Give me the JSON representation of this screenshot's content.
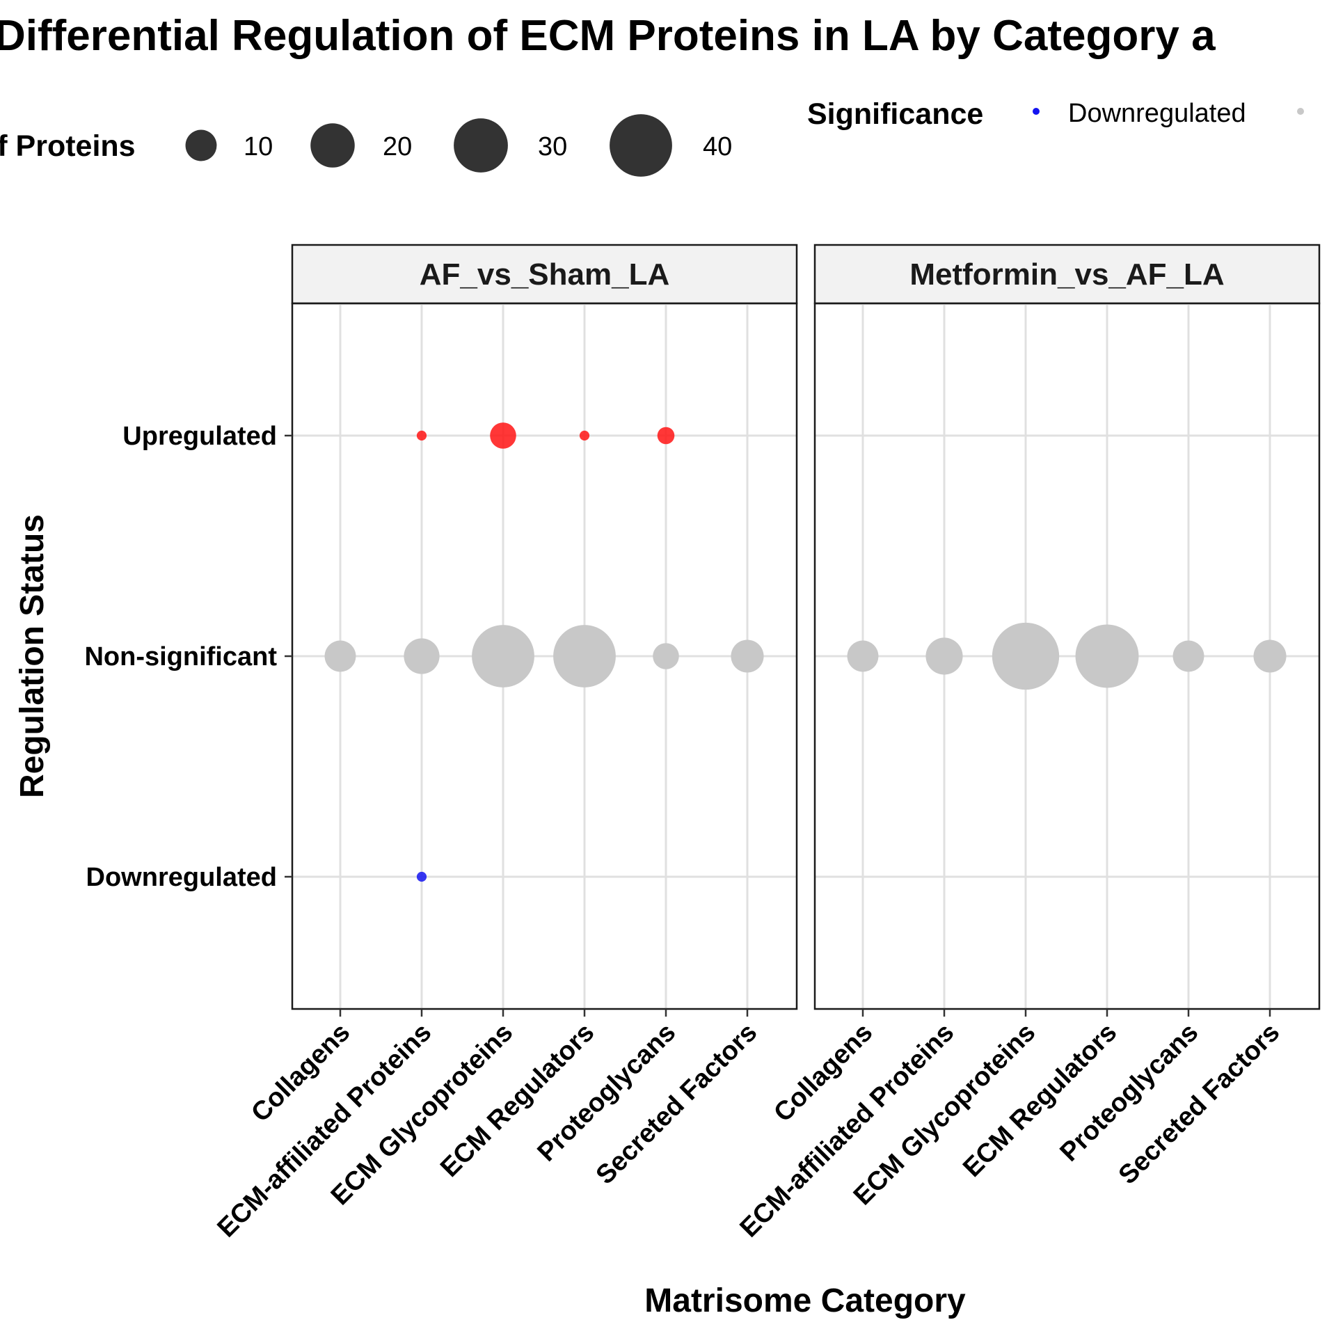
{
  "chart_data": {
    "type": "scatter",
    "title": "Differential Regulation of ECM Proteins in LA by Category a",
    "xlabel": "Matrisome Category",
    "ylabel": "Regulation Status",
    "categories": [
      "Collagens",
      "ECM-affiliated Proteins",
      "ECM Glycoproteins",
      "ECM Regulators",
      "Proteoglycans",
      "Secreted Factors"
    ],
    "y_levels": [
      "Downregulated",
      "Non-significant",
      "Upregulated"
    ],
    "facets": [
      "AF_vs_Sham_LA",
      "Metformin_vs_AF_LA"
    ],
    "size_legend": {
      "title": "of Proteins",
      "breaks": [
        10,
        20,
        30,
        40
      ],
      "labels": [
        "10",
        "20",
        "30",
        "40"
      ]
    },
    "color_legend": {
      "title": "Significance",
      "entries": [
        {
          "label": "Downregulated",
          "color": "#1414f0"
        },
        {
          "label": "",
          "color": "#c8c8c8"
        }
      ]
    },
    "colors": {
      "Upregulated": "#ff1414",
      "Non-significant": "#c8c8c8",
      "Downregulated": "#1414f0"
    },
    "points": [
      {
        "facet": "AF_vs_Sham_LA",
        "category": "Collagens",
        "status": "Non-significant",
        "count": 10
      },
      {
        "facet": "AF_vs_Sham_LA",
        "category": "ECM-affiliated Proteins",
        "status": "Upregulated",
        "count": 1
      },
      {
        "facet": "AF_vs_Sham_LA",
        "category": "ECM-affiliated Proteins",
        "status": "Non-significant",
        "count": 13
      },
      {
        "facet": "AF_vs_Sham_LA",
        "category": "ECM-affiliated Proteins",
        "status": "Downregulated",
        "count": 1
      },
      {
        "facet": "AF_vs_Sham_LA",
        "category": "ECM Glycoproteins",
        "status": "Upregulated",
        "count": 7
      },
      {
        "facet": "AF_vs_Sham_LA",
        "category": "ECM Glycoproteins",
        "status": "Non-significant",
        "count": 40
      },
      {
        "facet": "AF_vs_Sham_LA",
        "category": "ECM Regulators",
        "status": "Upregulated",
        "count": 1
      },
      {
        "facet": "AF_vs_Sham_LA",
        "category": "ECM Regulators",
        "status": "Non-significant",
        "count": 40
      },
      {
        "facet": "AF_vs_Sham_LA",
        "category": "Proteoglycans",
        "status": "Upregulated",
        "count": 3
      },
      {
        "facet": "AF_vs_Sham_LA",
        "category": "Proteoglycans",
        "status": "Non-significant",
        "count": 7
      },
      {
        "facet": "AF_vs_Sham_LA",
        "category": "Secreted Factors",
        "status": "Non-significant",
        "count": 11
      },
      {
        "facet": "Metformin_vs_AF_LA",
        "category": "Collagens",
        "status": "Non-significant",
        "count": 10
      },
      {
        "facet": "Metformin_vs_AF_LA",
        "category": "ECM-affiliated Proteins",
        "status": "Non-significant",
        "count": 14
      },
      {
        "facet": "Metformin_vs_AF_LA",
        "category": "ECM Glycoproteins",
        "status": "Non-significant",
        "count": 46
      },
      {
        "facet": "Metformin_vs_AF_LA",
        "category": "ECM Regulators",
        "status": "Non-significant",
        "count": 41
      },
      {
        "facet": "Metformin_vs_AF_LA",
        "category": "Proteoglycans",
        "status": "Non-significant",
        "count": 10
      },
      {
        "facet": "Metformin_vs_AF_LA",
        "category": "Secreted Factors",
        "status": "Non-significant",
        "count": 11
      }
    ]
  }
}
